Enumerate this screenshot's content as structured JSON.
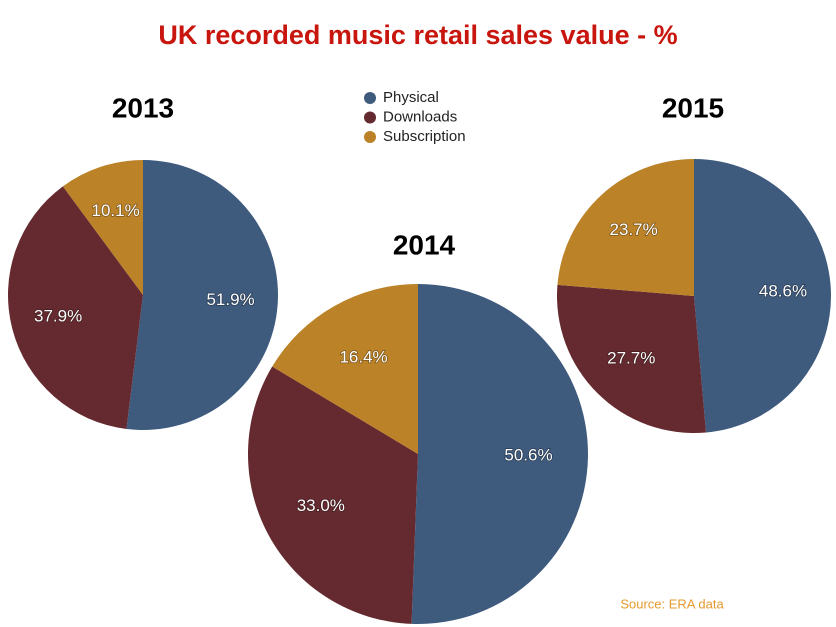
{
  "title": "UK recorded music retail sales value - %",
  "source": "Source: ERA data",
  "chart_data": [
    {
      "type": "pie",
      "title": "2013",
      "categories": [
        "Physical",
        "Downloads",
        "Subscription"
      ],
      "colors": [
        "#3e5a7d",
        "#652a2f",
        "#bb8228"
      ],
      "values": [
        51.9,
        37.9,
        10.1
      ],
      "value_labels": [
        "51.9%",
        "37.9%",
        "10.1%"
      ]
    },
    {
      "type": "pie",
      "title": "2014",
      "categories": [
        "Physical",
        "Downloads",
        "Subscription"
      ],
      "colors": [
        "#3e5a7d",
        "#652a2f",
        "#bb8228"
      ],
      "values": [
        50.6,
        33.0,
        16.4
      ],
      "value_labels": [
        "50.6%",
        "33.0%",
        "16.4%"
      ]
    },
    {
      "type": "pie",
      "title": "2015",
      "categories": [
        "Physical",
        "Downloads",
        "Subscription"
      ],
      "colors": [
        "#3e5a7d",
        "#652a2f",
        "#bb8228"
      ],
      "values": [
        48.6,
        27.7,
        23.7
      ],
      "value_labels": [
        "48.6%",
        "27.7%",
        "23.7%"
      ]
    }
  ]
}
